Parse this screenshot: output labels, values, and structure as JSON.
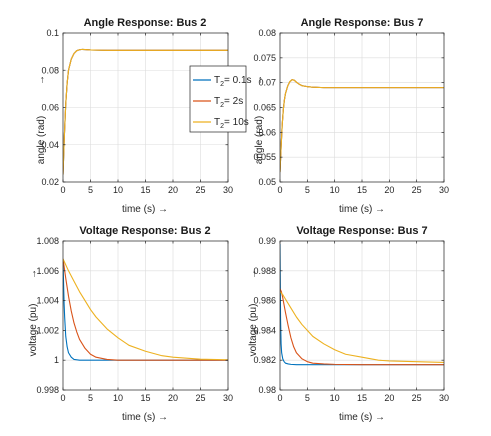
{
  "colors": {
    "s1": "#0072BD",
    "s2": "#D95319",
    "s3": "#EDB120",
    "axis": "#262626",
    "grid": "#dcdcdc"
  },
  "legend": {
    "entries": [
      {
        "base": "T",
        "sub": "2",
        "rest": "= 0.1s",
        "color": "#0072BD"
      },
      {
        "base": "T",
        "sub": "2",
        "rest": "= 2s",
        "color": "#D95319"
      },
      {
        "base": "T",
        "sub": "2",
        "rest": "= 10s",
        "color": "#EDB120"
      }
    ]
  },
  "chart_data": [
    {
      "type": "line",
      "title": "Angle Response: Bus 2",
      "xlabel": "time (s) →",
      "ylabel": "angle (rad)",
      "ylabel_arrow": "→",
      "xlim": [
        0,
        30
      ],
      "ylim": [
        0.02,
        0.1
      ],
      "xticks": [
        0,
        5,
        10,
        15,
        20,
        25,
        30
      ],
      "xtick_labels": [
        "0",
        "5",
        "10",
        "15",
        "20",
        "25",
        "30"
      ],
      "yticks": [
        0.02,
        0.04,
        0.06,
        0.08,
        0.1
      ],
      "ytick_labels": [
        "0.02",
        "0.04",
        "0.06",
        "0.08",
        "0.1"
      ],
      "grid": true,
      "legend_position": "right",
      "series": [
        {
          "name": "T2 = 0.1s",
          "color": "#0072BD",
          "x": [
            0,
            0.25,
            0.5,
            0.75,
            1,
            1.5,
            2,
            2.5,
            3,
            3.5,
            4,
            5,
            6,
            8,
            10,
            15,
            20,
            25,
            30
          ],
          "y": [
            0.024,
            0.045,
            0.062,
            0.073,
            0.08,
            0.086,
            0.089,
            0.0905,
            0.091,
            0.0912,
            0.0911,
            0.0909,
            0.0908,
            0.0907,
            0.0907,
            0.0907,
            0.0907,
            0.0907,
            0.0907
          ]
        },
        {
          "name": "T2 = 2s",
          "color": "#D95319",
          "x": [
            0,
            0.25,
            0.5,
            0.75,
            1,
            1.5,
            2,
            2.5,
            3,
            3.5,
            4,
            5,
            6,
            8,
            10,
            15,
            20,
            25,
            30
          ],
          "y": [
            0.024,
            0.045,
            0.062,
            0.073,
            0.08,
            0.086,
            0.089,
            0.0905,
            0.091,
            0.0912,
            0.0911,
            0.0909,
            0.0908,
            0.0907,
            0.0907,
            0.0907,
            0.0907,
            0.0907,
            0.0907
          ]
        },
        {
          "name": "T2 = 10s",
          "color": "#EDB120",
          "x": [
            0,
            0.25,
            0.5,
            0.75,
            1,
            1.5,
            2,
            2.5,
            3,
            3.5,
            4,
            5,
            6,
            8,
            10,
            15,
            20,
            25,
            30
          ],
          "y": [
            0.024,
            0.045,
            0.062,
            0.073,
            0.08,
            0.086,
            0.089,
            0.0905,
            0.091,
            0.0912,
            0.0911,
            0.0909,
            0.0908,
            0.0907,
            0.0907,
            0.0907,
            0.0907,
            0.0907,
            0.0907
          ]
        }
      ]
    },
    {
      "type": "line",
      "title": "Angle Response: Bus 7",
      "xlabel": "time (s) →",
      "ylabel": "angle (rad)",
      "ylabel_arrow": "→",
      "xlim": [
        0,
        30
      ],
      "ylim": [
        0.05,
        0.08
      ],
      "xticks": [
        0,
        5,
        10,
        15,
        20,
        25,
        30
      ],
      "xtick_labels": [
        "0",
        "5",
        "10",
        "15",
        "20",
        "25",
        "30"
      ],
      "yticks": [
        0.05,
        0.055,
        0.06,
        0.065,
        0.07,
        0.075,
        0.08
      ],
      "ytick_labels": [
        "0.05",
        "0.055",
        "0.06",
        "0.065",
        "0.07",
        "0.075",
        "0.08"
      ],
      "grid": true,
      "series": [
        {
          "name": "T2 = 0.1s",
          "color": "#0072BD",
          "x": [
            0,
            0.2,
            0.4,
            0.6,
            0.8,
            1,
            1.4,
            1.8,
            2.2,
            2.6,
            3,
            3.5,
            4,
            5,
            6,
            8,
            10,
            15,
            20,
            25,
            30
          ],
          "y": [
            0.052,
            0.057,
            0.0615,
            0.0645,
            0.0665,
            0.0678,
            0.0693,
            0.0702,
            0.0706,
            0.0705,
            0.0701,
            0.0697,
            0.0694,
            0.0692,
            0.0691,
            0.069,
            0.069,
            0.069,
            0.069,
            0.069,
            0.069
          ]
        },
        {
          "name": "T2 = 2s",
          "color": "#D95319",
          "x": [
            0,
            0.2,
            0.4,
            0.6,
            0.8,
            1,
            1.4,
            1.8,
            2.2,
            2.6,
            3,
            3.5,
            4,
            5,
            6,
            8,
            10,
            15,
            20,
            25,
            30
          ],
          "y": [
            0.052,
            0.057,
            0.0615,
            0.0645,
            0.0665,
            0.0678,
            0.0693,
            0.0702,
            0.0706,
            0.0705,
            0.0701,
            0.0697,
            0.0694,
            0.0692,
            0.0691,
            0.069,
            0.069,
            0.069,
            0.069,
            0.069,
            0.069
          ]
        },
        {
          "name": "T2 = 10s",
          "color": "#EDB120",
          "x": [
            0,
            0.2,
            0.4,
            0.6,
            0.8,
            1,
            1.4,
            1.8,
            2.2,
            2.6,
            3,
            3.5,
            4,
            5,
            6,
            8,
            10,
            15,
            20,
            25,
            30
          ],
          "y": [
            0.052,
            0.057,
            0.0615,
            0.0645,
            0.0665,
            0.0678,
            0.0693,
            0.0702,
            0.0706,
            0.0705,
            0.0701,
            0.0697,
            0.0694,
            0.0692,
            0.0691,
            0.069,
            0.069,
            0.069,
            0.069,
            0.069,
            0.069
          ]
        }
      ]
    },
    {
      "type": "line",
      "title": "Voltage Response: Bus 2",
      "xlabel": "time (s) →",
      "ylabel": "voltage (pu)",
      "ylabel_arrow": "→",
      "xlim": [
        0,
        30
      ],
      "ylim": [
        0.998,
        1.008
      ],
      "xticks": [
        0,
        5,
        10,
        15,
        20,
        25,
        30
      ],
      "xtick_labels": [
        "0",
        "5",
        "10",
        "15",
        "20",
        "25",
        "30"
      ],
      "yticks": [
        0.998,
        1.0,
        1.002,
        1.004,
        1.006,
        1.008
      ],
      "ytick_labels": [
        "0.998",
        "1",
        "1.002",
        "1.004",
        "1.006",
        "1.008"
      ],
      "grid": true,
      "series": [
        {
          "name": "T2 = 0.1s",
          "color": "#0072BD",
          "x": [
            0,
            0.1,
            0.2,
            0.3,
            0.5,
            0.75,
            1,
            1.5,
            2,
            3,
            4,
            6,
            10,
            20,
            30
          ],
          "y": [
            1.0068,
            1.0052,
            1.0038,
            1.0029,
            1.0016,
            1.0009,
            1.0005,
            1.0002,
            1.00005,
            1.0,
            1.0,
            1.0,
            1.0,
            1.0,
            1.0
          ]
        },
        {
          "name": "T2 = 2s",
          "color": "#D95319",
          "x": [
            0,
            0.5,
            1,
            1.5,
            2,
            2.5,
            3,
            4,
            5,
            6,
            8,
            10,
            15,
            20,
            30
          ],
          "y": [
            1.0068,
            1.0055,
            1.0043,
            1.0033,
            1.0025,
            1.0019,
            1.0014,
            1.0008,
            1.0004,
            1.0002,
            1.00005,
            1.0,
            1.0,
            1.0,
            1.0
          ]
        },
        {
          "name": "T2 = 10s",
          "color": "#EDB120",
          "x": [
            0,
            1,
            2,
            3,
            4,
            5,
            6,
            8,
            10,
            12,
            15,
            18,
            20,
            25,
            30
          ],
          "y": [
            1.0068,
            1.006,
            1.0053,
            1.0046,
            1.004,
            1.0034,
            1.0029,
            1.0021,
            1.0015,
            1.001,
            1.0006,
            1.0003,
            1.0002,
            1.00007,
            1.00003
          ]
        }
      ]
    },
    {
      "type": "line",
      "title": "Voltage Response: Bus 7",
      "xlabel": "time (s) →",
      "ylabel": "voltage (pu)",
      "ylabel_arrow": "→",
      "xlim": [
        0,
        30
      ],
      "ylim": [
        0.98,
        0.99
      ],
      "xticks": [
        0,
        5,
        10,
        15,
        20,
        25,
        30
      ],
      "xtick_labels": [
        "0",
        "5",
        "10",
        "15",
        "20",
        "25",
        "30"
      ],
      "yticks": [
        0.98,
        0.982,
        0.984,
        0.986,
        0.988,
        0.99
      ],
      "ytick_labels": [
        "0.98",
        "0.982",
        "0.984",
        "0.986",
        "0.988",
        "0.99"
      ],
      "grid": true,
      "series": [
        {
          "name": "T2 = 0.1s",
          "color": "#0072BD",
          "x": [
            0,
            0.1,
            0.2,
            0.3,
            0.5,
            0.75,
            1,
            1.5,
            2,
            3,
            4,
            6,
            10,
            20,
            30
          ],
          "y": [
            0.9898,
            0.9848,
            0.9831,
            0.9825,
            0.9821,
            0.9819,
            0.9818,
            0.98175,
            0.98172,
            0.9817,
            0.9817,
            0.9817,
            0.9817,
            0.9817,
            0.9817
          ]
        },
        {
          "name": "T2 = 2s",
          "color": "#D95319",
          "x": [
            0,
            0.25,
            0.5,
            1,
            1.5,
            2,
            2.5,
            3,
            4,
            5,
            6,
            8,
            10,
            15,
            20,
            30
          ],
          "y": [
            0.9868,
            0.9866,
            0.9862,
            0.9852,
            0.9843,
            0.9835,
            0.9829,
            0.9825,
            0.9821,
            0.9819,
            0.9818,
            0.98175,
            0.98172,
            0.9817,
            0.9817,
            0.9817
          ]
        },
        {
          "name": "T2 = 10s",
          "color": "#EDB120",
          "x": [
            0,
            0.5,
            1,
            2,
            3,
            4,
            5,
            6,
            8,
            10,
            12,
            15,
            18,
            20,
            25,
            30
          ],
          "y": [
            0.9866,
            0.9864,
            0.9861,
            0.9855,
            0.9849,
            0.9844,
            0.984,
            0.9836,
            0.9831,
            0.9827,
            0.9824,
            0.9822,
            0.982,
            0.98195,
            0.9819,
            0.98185
          ]
        }
      ]
    }
  ]
}
